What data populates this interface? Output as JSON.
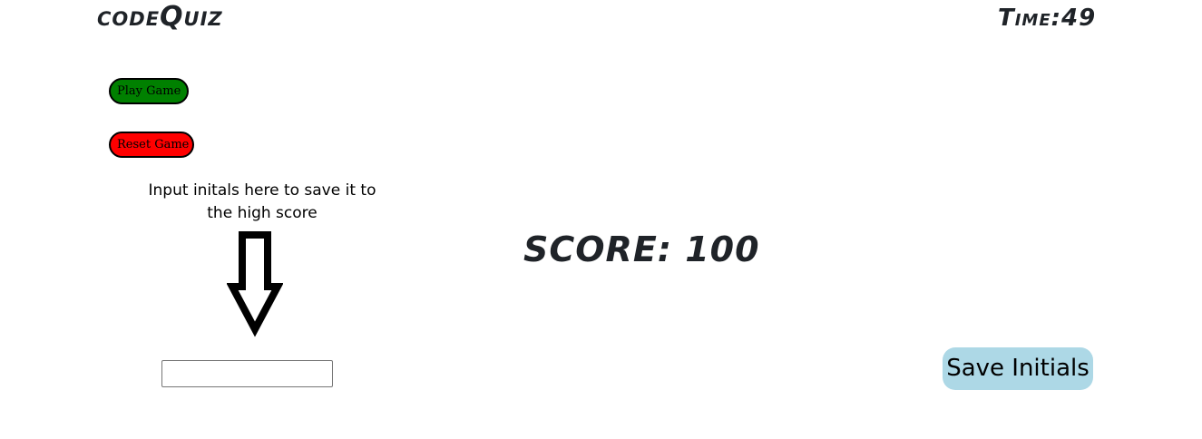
{
  "header": {
    "logo": "codeQuiz",
    "timer": "Time:49"
  },
  "controls": {
    "play_label": "Play Game",
    "play_color": "#008000",
    "reset_label": "Reset Game",
    "reset_color": "#ff0000"
  },
  "save_panel": {
    "instruction": "Input initals here to save it to the high score",
    "arrow_icon": "down-arrow-icon",
    "initials_value": "",
    "initials_placeholder": "",
    "save_label": "Save Initials",
    "save_color": "#add8e6"
  },
  "score": {
    "text": "SCORE: 100"
  }
}
